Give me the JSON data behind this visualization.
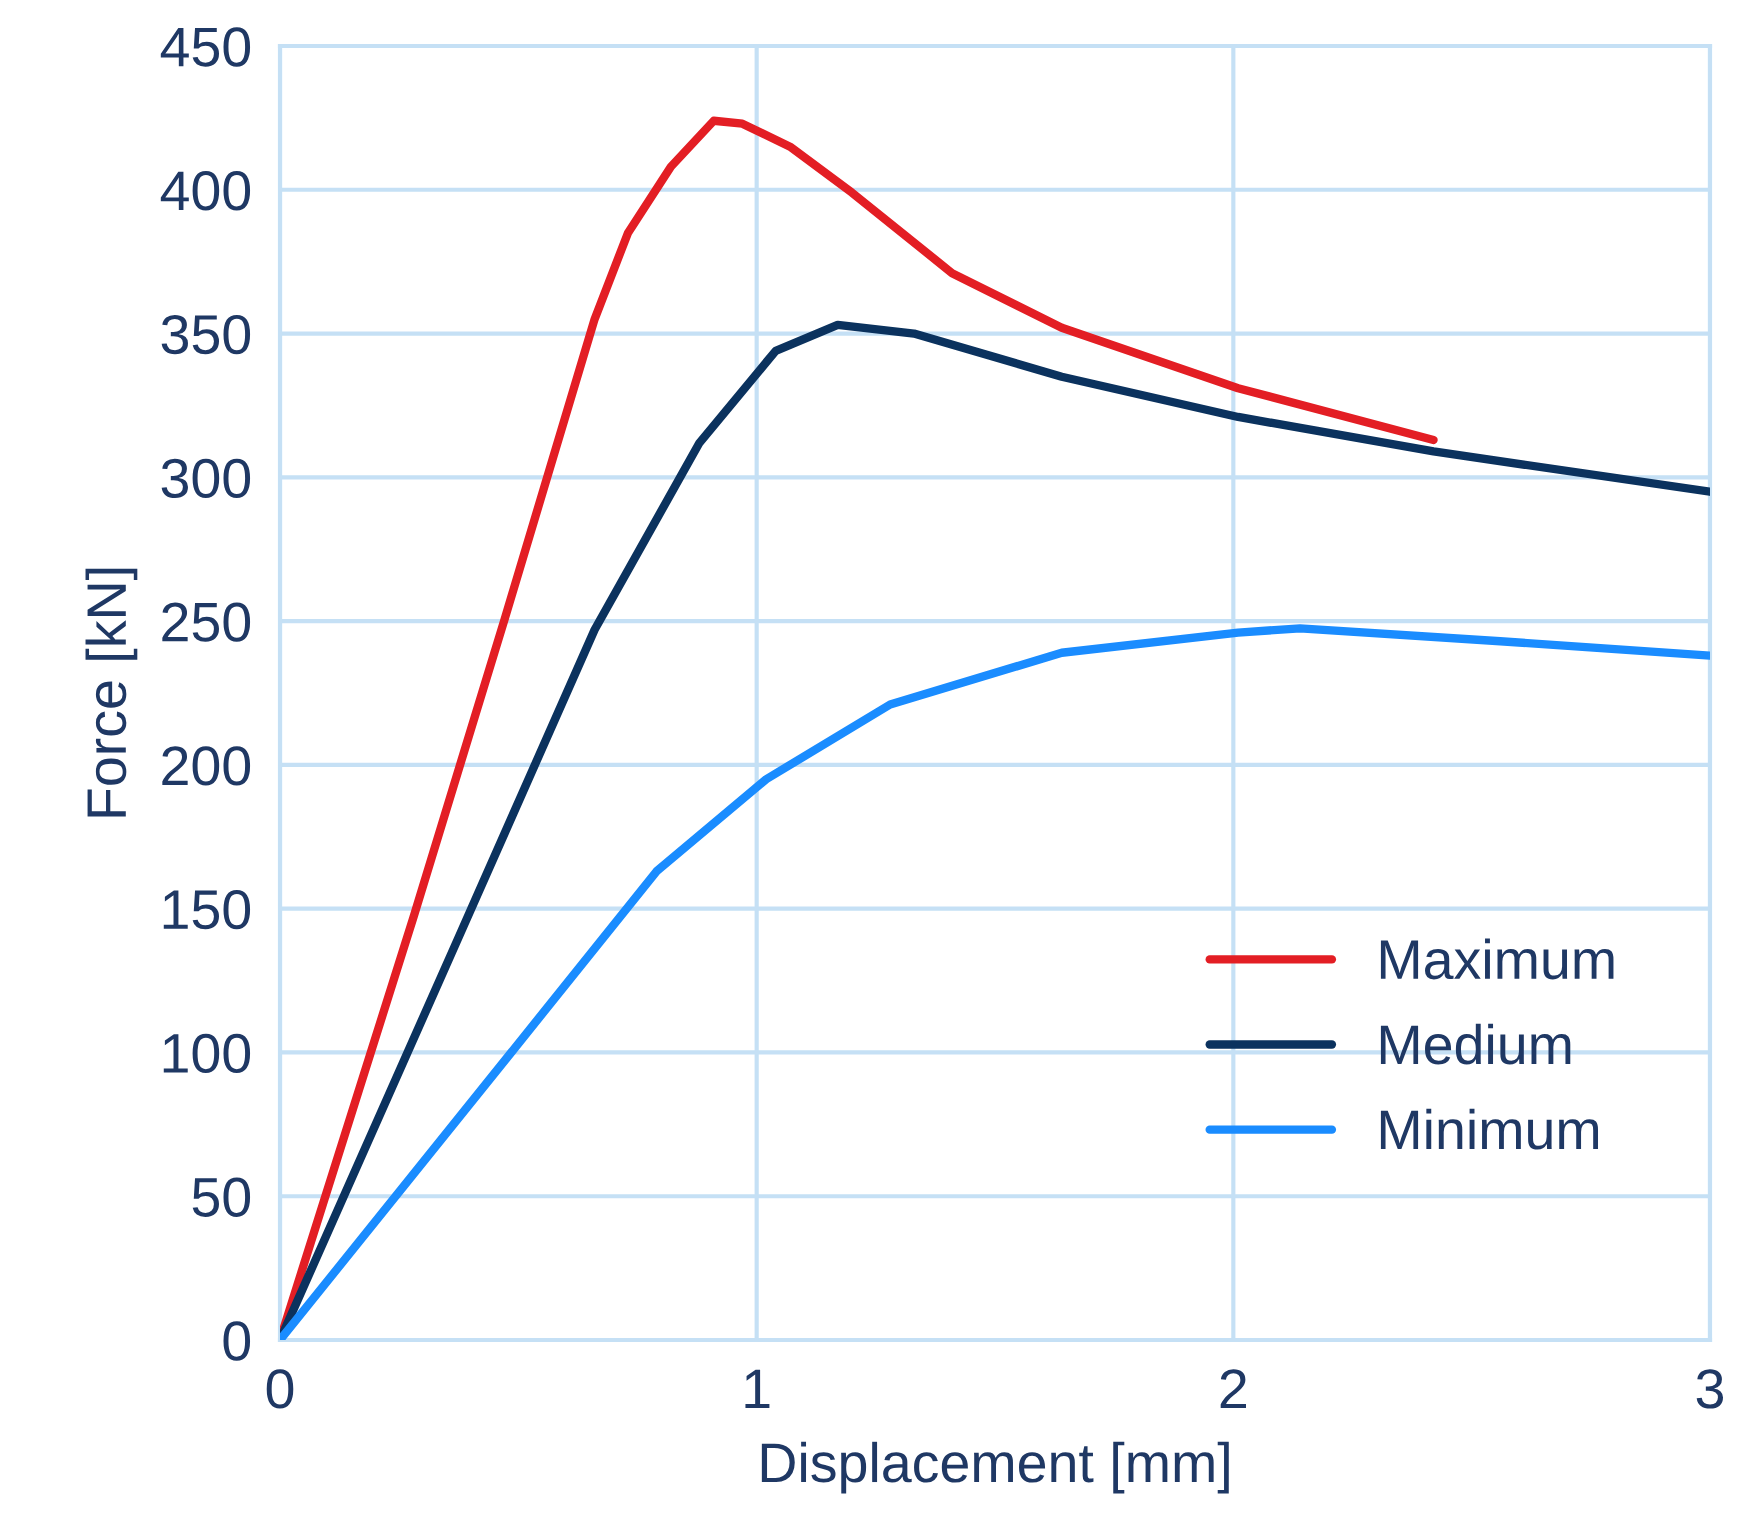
{
  "chart_data": {
    "type": "line",
    "xlabel": "Displacement [mm]",
    "ylabel": "Force [kN]",
    "xlim": [
      0,
      3
    ],
    "xticks": [
      0,
      1,
      2,
      3
    ],
    "ylim": [
      0,
      450
    ],
    "yticks": [
      0,
      50,
      100,
      150,
      200,
      250,
      300,
      350,
      400,
      450
    ],
    "grid": true,
    "legend": "bottom right",
    "marker": "none",
    "line_style": "solid",
    "series": [
      {
        "name": "Maximum",
        "color": "#e31e24",
        "x": [
          0,
          0.28,
          0.47,
          0.66,
          0.73,
          0.82,
          0.91,
          0.97,
          1.07,
          1.2,
          1.41,
          1.64,
          2.01,
          2.42
        ],
        "values": [
          0,
          147,
          250,
          355,
          385,
          408,
          424,
          423,
          415,
          399,
          371,
          352,
          331,
          313
        ]
      },
      {
        "name": "Medium",
        "color": "#0b325e",
        "x": [
          0,
          0.38,
          0.66,
          0.88,
          1.04,
          1.17,
          1.33,
          1.64,
          2.01,
          2.42,
          3
        ],
        "values": [
          0,
          142,
          247,
          312,
          344,
          353,
          350,
          335,
          321,
          309,
          295
        ]
      },
      {
        "name": "Minimum",
        "color": "#1a8cff",
        "x": [
          0,
          0.49,
          0.79,
          1.02,
          1.28,
          1.64,
          2.01,
          2.14,
          2.56,
          3
        ],
        "values": [
          0,
          101,
          163,
          195,
          221,
          239,
          246,
          247.5,
          243,
          238
        ]
      }
    ]
  }
}
